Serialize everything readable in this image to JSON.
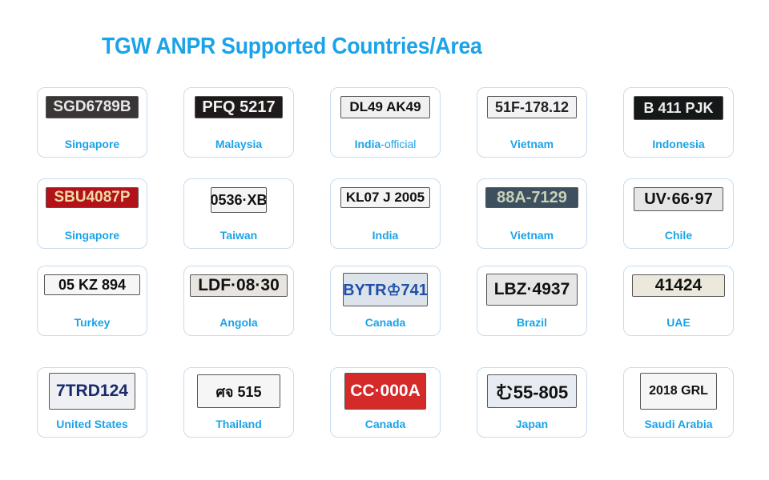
{
  "title": "TGW ANPR Supported Countries/Area",
  "colors": {
    "accent": "#1aa3e8",
    "card_border": "#c8dcee"
  },
  "cards": [
    {
      "country": "Singapore",
      "plate": "SGD6789B",
      "bg": "#3a3636",
      "fg": "#e8e8e8",
      "w": 116,
      "h": 28,
      "fs": 19
    },
    {
      "country": "Malaysia",
      "plate": "PFQ 5217",
      "bg": "#1e1a1a",
      "fg": "#f2f2f2",
      "w": 110,
      "h": 28,
      "fs": 20
    },
    {
      "country": "India",
      "suffix": "-official",
      "plate": "DL49 AK49",
      "bg": "#f0f0f0",
      "fg": "#111",
      "w": 112,
      "h": 28,
      "fs": 17
    },
    {
      "country": "Vietnam",
      "plate": "51F-178.12",
      "bg": "#f2f2f4",
      "fg": "#222",
      "w": 112,
      "h": 28,
      "fs": 18
    },
    {
      "country": "Indonesia",
      "plate": "B 411 PJK",
      "bg": "#151818",
      "fg": "#eee",
      "w": 112,
      "h": 30,
      "fs": 18
    },
    {
      "country": "Singapore",
      "plate": "SBU4087P",
      "bg": "#b3121a",
      "fg": "#f0d9a4",
      "w": 116,
      "h": 26,
      "fs": 19
    },
    {
      "country": "Taiwan",
      "plate": "0536·XB",
      "bg": "#f4f4f4",
      "fg": "#111",
      "w": 70,
      "h": 32,
      "fs": 18
    },
    {
      "country": "India",
      "plate": "KL07 J 2005",
      "bg": "#f4f4f4",
      "fg": "#111",
      "w": 112,
      "h": 26,
      "fs": 17
    },
    {
      "country": "Vietnam",
      "plate": "88A-7129",
      "bg": "#3c5060",
      "fg": "#c8d0b8",
      "w": 116,
      "h": 26,
      "fs": 20
    },
    {
      "country": "Chile",
      "plate": "UV·66·97",
      "bg": "#e6e6e6",
      "fg": "#111",
      "w": 112,
      "h": 30,
      "fs": 20
    },
    {
      "country": "Turkey",
      "plate": "05 KZ 894",
      "bg": "#f6f6f6",
      "fg": "#111",
      "w": 120,
      "h": 26,
      "fs": 18
    },
    {
      "country": "Angola",
      "plate": "LDF·08·30",
      "bg": "#e8e4e0",
      "fg": "#111",
      "w": 122,
      "h": 28,
      "fs": 21
    },
    {
      "country": "Canada",
      "plate": "BYTR♔741",
      "bg": "#dde3ea",
      "fg": "#1f4fa8",
      "w": 106,
      "h": 42,
      "fs": 20
    },
    {
      "country": "Brazil",
      "plate": "LBZ·4937",
      "bg": "#e6e6e6",
      "fg": "#111",
      "w": 114,
      "h": 40,
      "fs": 21
    },
    {
      "country": "UAE",
      "plate": "41424",
      "bg": "#ece8dc",
      "fg": "#111",
      "w": 116,
      "h": 28,
      "fs": 21
    },
    {
      "country": "United States",
      "plate": "7TRD124",
      "bg": "#eef0f4",
      "fg": "#1a2a6a",
      "w": 108,
      "h": 46,
      "fs": 21
    },
    {
      "country": "Thailand",
      "plate": "ศจ 515",
      "bg": "#f6f6f6",
      "fg": "#111",
      "w": 104,
      "h": 42,
      "fs": 18
    },
    {
      "country": "Canada",
      "plate": "CC·000A",
      "bg": "#d42a2a",
      "fg": "#fff",
      "w": 102,
      "h": 46,
      "fs": 21
    },
    {
      "country": "Japan",
      "plate": "む55-805",
      "bg": "#e6ecf2",
      "fg": "#111",
      "w": 112,
      "h": 42,
      "fs": 22
    },
    {
      "country": "Saudi Arabia",
      "plate": "2018 GRL",
      "bg": "#f6f6f6",
      "fg": "#111",
      "w": 96,
      "h": 46,
      "fs": 16
    }
  ]
}
